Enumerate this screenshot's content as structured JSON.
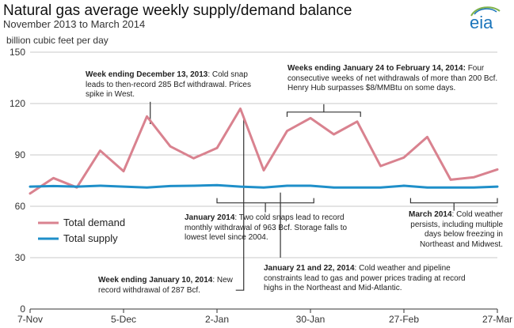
{
  "header": {
    "title": "Natural gas average weekly supply/demand balance",
    "subtitle": "November 2013 to March 2014",
    "logo_text": "eia"
  },
  "chart_data": {
    "type": "line",
    "title": "Natural gas average weekly supply/demand balance",
    "subtitle": "November 2013 to March 2014",
    "ylabel": "billion cubic feet per day",
    "xlabel": "",
    "ylim": [
      0,
      150
    ],
    "yticks": [
      0,
      30,
      60,
      90,
      120,
      150
    ],
    "xlim": [
      "2013-11-07",
      "2014-03-27"
    ],
    "xticks": [
      {
        "date": "2013-11-07",
        "label": "7-Nov"
      },
      {
        "date": "2013-12-05",
        "label": "5-Dec"
      },
      {
        "date": "2014-01-02",
        "label": "2-Jan"
      },
      {
        "date": "2014-01-30",
        "label": "30-Jan"
      },
      {
        "date": "2014-02-27",
        "label": "27-Feb"
      },
      {
        "date": "2014-03-27",
        "label": "27-Mar"
      }
    ],
    "grid": "horizontal",
    "legend_position": "left",
    "x": [
      "2013-11-07",
      "2013-11-14",
      "2013-11-21",
      "2013-11-28",
      "2013-12-05",
      "2013-12-12",
      "2013-12-19",
      "2013-12-26",
      "2014-01-02",
      "2014-01-09",
      "2014-01-16",
      "2014-01-23",
      "2014-01-30",
      "2014-02-06",
      "2014-02-13",
      "2014-02-20",
      "2014-02-27",
      "2014-03-06",
      "2014-03-13",
      "2014-03-20",
      "2014-03-27"
    ],
    "series": [
      {
        "name": "Total demand",
        "color": "#d9828f",
        "values": [
          67.5,
          76.5,
          71,
          92.5,
          80.5,
          112.5,
          95,
          88,
          94,
          117,
          81,
          104,
          111.5,
          102,
          109.5,
          83.5,
          88.5,
          100.5,
          75.5,
          77,
          81.5
        ]
      },
      {
        "name": "Total supply",
        "color": "#1f8fc9",
        "values": [
          71.5,
          71.8,
          71.5,
          72,
          71.5,
          71,
          71.8,
          72,
          72.3,
          71.5,
          71,
          72,
          72,
          71,
          71,
          71,
          72,
          71,
          71,
          71,
          71.5
        ]
      }
    ],
    "annotations": [
      {
        "bold": "Week ending December 13, 2013",
        "text": ": Cold snap leads to then-record 285 Bcf withdrawal. Prices spike in West."
      },
      {
        "bold": "Weeks ending January 24 to February 14, 2014:",
        "text": " Four consecutive weeks of net withdrawals of more than 200 Bcf. Henry Hub surpasses $8/MMBtu on some days."
      },
      {
        "bold": "January 2014",
        "text": ": Two cold snaps lead to record monthly withdrawal of 963 Bcf. Storage falls to lowest level since 2004."
      },
      {
        "bold": "March 2014",
        "text": ": Cold weather persists, including multiple days below freezing in Northeast and Midwest."
      },
      {
        "bold": "January 21 and 22, 2014",
        "text": ": Cold weather and pipeline constraints lead to gas and power prices trading at record highs in the Northeast and Mid-Atlantic."
      },
      {
        "bold": "Week ending January 10, 2014",
        "text": ": New record withdrawal of 287 Bcf."
      }
    ]
  }
}
